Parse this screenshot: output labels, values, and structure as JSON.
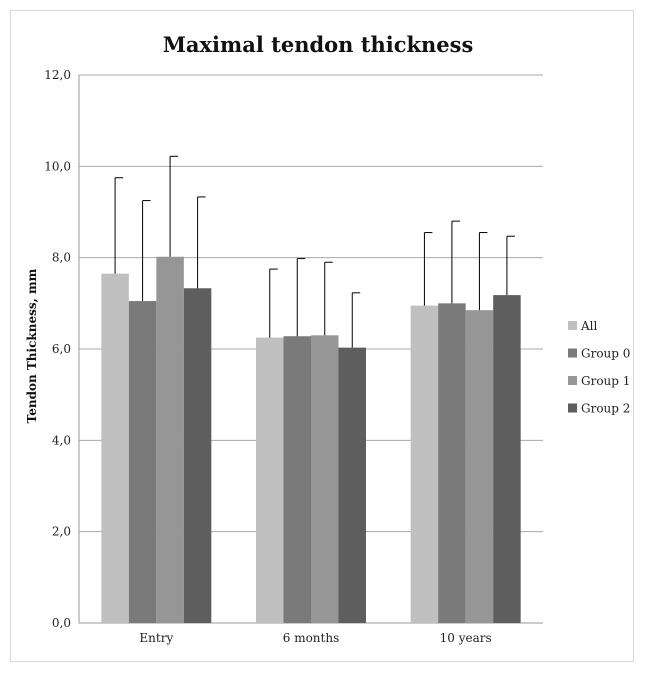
{
  "chart_data": {
    "type": "bar",
    "title": "Maximal tendon thickness",
    "ylabel": "Tendon Thickness, mm",
    "xlabel": "",
    "ylim": [
      0,
      12
    ],
    "yticks": [
      "0,0",
      "2,0",
      "4,0",
      "6,0",
      "8,0",
      "10,0",
      "12,0"
    ],
    "ytick_values": [
      0,
      2,
      4,
      6,
      8,
      10,
      12
    ],
    "grid": true,
    "legend_position": "right",
    "categories": [
      "Entry",
      "6 months",
      "10 years"
    ],
    "series": [
      {
        "name": "All",
        "color": "#c0c0c0",
        "values": [
          7.65,
          6.25,
          6.95
        ],
        "error_upper": [
          9.75,
          7.75,
          8.55
        ]
      },
      {
        "name": "Group 0",
        "color": "#7a7a7a",
        "values": [
          7.05,
          6.28,
          7.0
        ],
        "error_upper": [
          9.25,
          7.98,
          8.8
        ]
      },
      {
        "name": "Group 1",
        "color": "#969696",
        "values": [
          8.02,
          6.3,
          6.85
        ],
        "error_upper": [
          10.22,
          7.9,
          8.55
        ]
      },
      {
        "name": "Group 2",
        "color": "#5e5e5e",
        "values": [
          7.33,
          6.03,
          7.18
        ],
        "error_upper": [
          9.33,
          7.23,
          8.47
        ]
      }
    ]
  }
}
